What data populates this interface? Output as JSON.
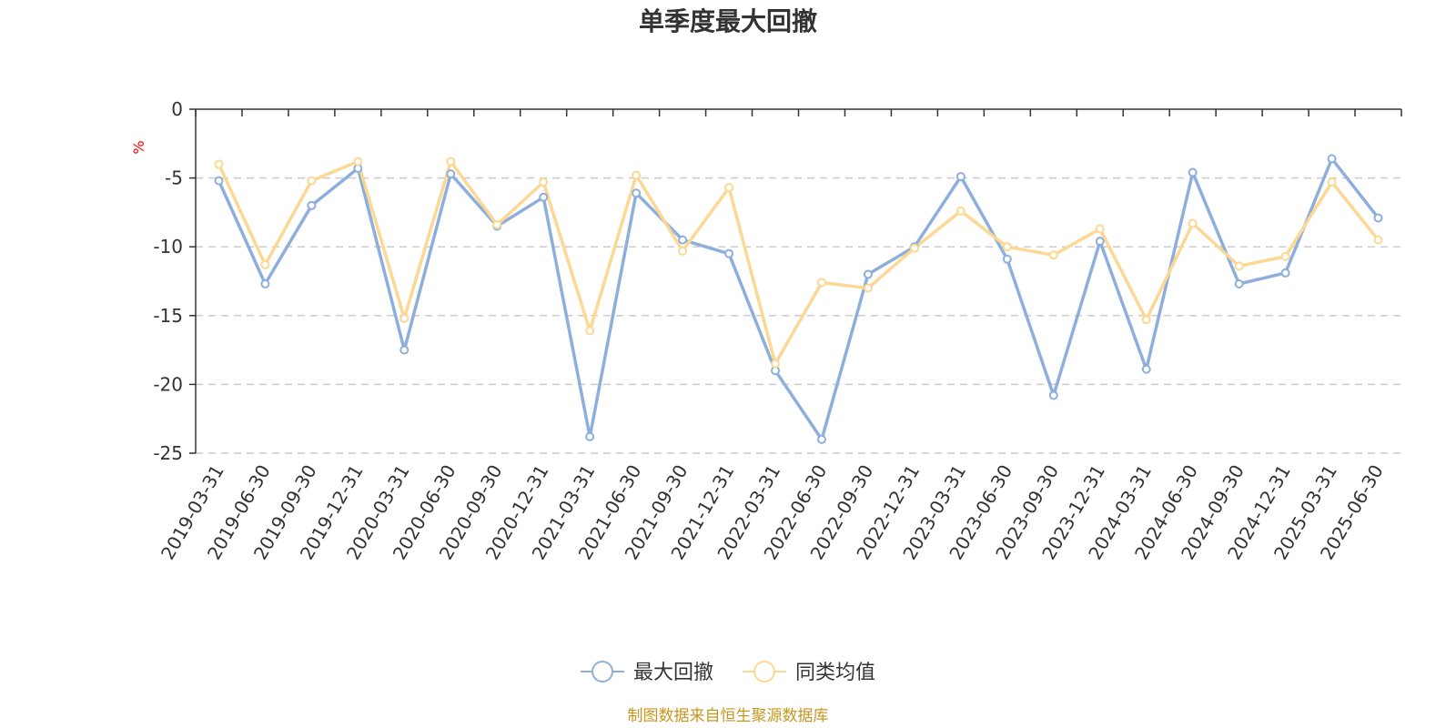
{
  "chart_data": {
    "type": "line",
    "title": "单季度最大回撤",
    "ylabel": "%",
    "xlabel": "",
    "ylim": [
      -25,
      0
    ],
    "yticks": [
      0,
      -5,
      -10,
      -15,
      -20,
      -25
    ],
    "grid": true,
    "legend_position": "bottom-center",
    "categories": [
      "2019-03-31",
      "2019-06-30",
      "2019-09-30",
      "2019-12-31",
      "2020-03-31",
      "2020-06-30",
      "2020-09-30",
      "2020-12-31",
      "2021-03-31",
      "2021-06-30",
      "2021-09-30",
      "2021-12-31",
      "2022-03-31",
      "2022-06-30",
      "2022-09-30",
      "2022-12-31",
      "2023-03-31",
      "2023-06-30",
      "2023-09-30",
      "2023-12-31",
      "2024-03-31",
      "2024-06-30",
      "2024-09-30",
      "2024-12-31",
      "2025-03-31",
      "2025-06-30"
    ],
    "series": [
      {
        "name": "最大回撤",
        "color": "#8eaedc",
        "values": [
          -5.2,
          -12.7,
          -7.0,
          -4.3,
          -17.5,
          -4.7,
          -8.5,
          -6.4,
          -23.8,
          -6.1,
          -9.5,
          -10.5,
          -19.0,
          -24.0,
          -12.0,
          -10.0,
          -4.9,
          -10.9,
          -20.8,
          -9.6,
          -18.9,
          -4.6,
          -12.7,
          -11.9,
          -3.6,
          -7.9
        ]
      },
      {
        "name": "同类均值",
        "color": "#fbd893",
        "values": [
          -4.0,
          -11.3,
          -5.2,
          -3.8,
          -15.2,
          -3.8,
          -8.4,
          -5.3,
          -16.1,
          -4.8,
          -10.3,
          -5.7,
          -18.5,
          -12.6,
          -13.0,
          -10.1,
          -7.4,
          -10.0,
          -10.6,
          -8.7,
          -15.3,
          -8.3,
          -11.4,
          -10.7,
          -5.3,
          -9.5
        ]
      }
    ]
  },
  "source_note": "制图数据来自恒生聚源数据库"
}
